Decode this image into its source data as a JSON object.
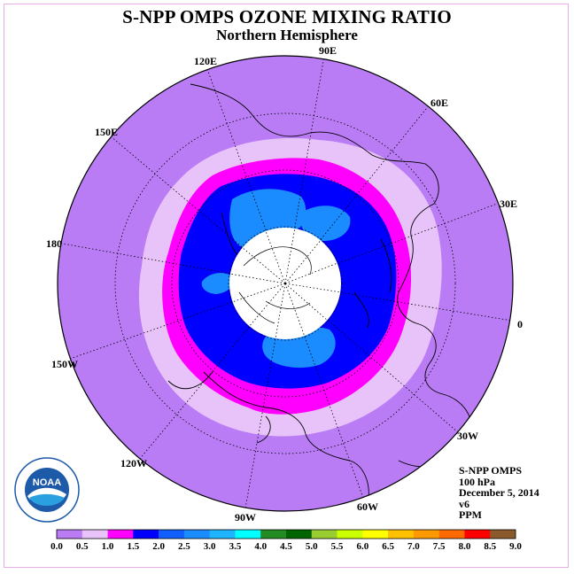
{
  "title": "S-NPP OMPS OZONE MIXING RATIO",
  "subtitle": "Northern Hemisphere",
  "longitude_labels": [
    "90E",
    "60E",
    "30E",
    "0",
    "30W",
    "60W",
    "90W",
    "120W",
    "150W",
    "180",
    "150E",
    "120E"
  ],
  "info": {
    "instrument": "S-NPP OMPS",
    "level": "100 hPa",
    "date": "December 5, 2014",
    "version": "v6",
    "units": "PPM"
  },
  "logo": {
    "text": "NOAA",
    "ring_text": "NATIONAL OCEANIC AND ATMOSPHERIC ADMINISTRATION · U.S. DEPARTMENT OF COMMERCE"
  },
  "colorbar": {
    "colors": [
      "#b97cf5",
      "#e8c3f9",
      "#ff00ff",
      "#0000ff",
      "#0f5fff",
      "#1a8cff",
      "#1eb4ff",
      "#00ffff",
      "#228b22",
      "#006400",
      "#9acd32",
      "#ccff00",
      "#ffff00",
      "#ffc000",
      "#ff9900",
      "#ff6a00",
      "#ff0000",
      "#8b5a2b"
    ],
    "labels": [
      "0.0",
      "0.5",
      "1.0",
      "1.5",
      "2.0",
      "2.5",
      "3.0",
      "3.5",
      "4.0",
      "4.5",
      "5.0",
      "5.5",
      "6.0",
      "6.5",
      "7.0",
      "7.5",
      "8.0",
      "8.5",
      "9.0"
    ]
  },
  "colors": {
    "outer": "#b97cf5",
    "light": "#e8c3f9",
    "magenta": "#ff00ff",
    "blue": "#0000ff",
    "azure": "#1a8cff",
    "no_data": "#ffffff"
  }
}
